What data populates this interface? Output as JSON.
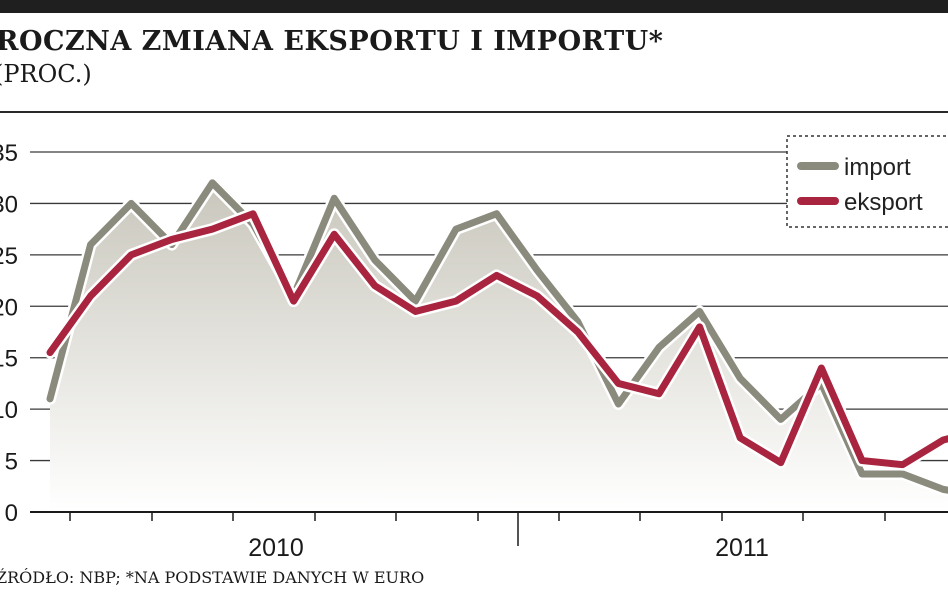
{
  "header": {
    "title": "ROCZNA ZMIANA EKSPORTU I IMPORTU*",
    "subtitle": "(PROC.)"
  },
  "footer": {
    "source": "ŹRÓDŁO: NBP;",
    "note": "*NA PODSTAWIE DANYCH W EURO"
  },
  "colors": {
    "import": "#8a8a7d",
    "eksport": "#a8243f",
    "fill": "#c9c7bc"
  },
  "chart_data": {
    "type": "line",
    "title": "ROCZNA ZMIANA EKSPORTU I IMPORTU*",
    "ylabel": "(PROC.)",
    "xlabel": "",
    "ylim": [
      0,
      35
    ],
    "yticks": [
      "0",
      "5",
      "10",
      "15",
      "20",
      "25",
      "30",
      "35"
    ],
    "year_labels": [
      "2010",
      "2011"
    ],
    "categories": [
      "2009-11",
      "2009-12",
      "2010-01",
      "2010-02",
      "2010-03",
      "2010-04",
      "2010-05",
      "2010-06",
      "2010-07",
      "2010-08",
      "2010-09",
      "2010-10",
      "2010-11",
      "2010-12",
      "2011-01",
      "2011-02",
      "2011-03",
      "2011-04",
      "2011-05",
      "2011-06",
      "2011-07",
      "2011-08",
      "2011-09",
      "2011-10"
    ],
    "series": [
      {
        "name": "import",
        "values": [
          11,
          26,
          30,
          26,
          32,
          28,
          21,
          30.5,
          24.5,
          20.5,
          27.5,
          29,
          23.5,
          18.5,
          10.5,
          16,
          19.5,
          13,
          9,
          12.5,
          3.7,
          3.7,
          2.2,
          1.5
        ]
      },
      {
        "name": "eksport",
        "values": [
          15.5,
          21,
          25,
          26.5,
          27.5,
          29,
          20.5,
          27,
          22,
          19.5,
          20.5,
          23,
          21,
          17.5,
          12.5,
          11.5,
          18,
          7.2,
          4.8,
          14,
          5,
          4.6,
          7,
          8
        ]
      }
    ],
    "legend": [
      "import",
      "eksport"
    ],
    "legend_position": "top-right",
    "grid": true
  }
}
